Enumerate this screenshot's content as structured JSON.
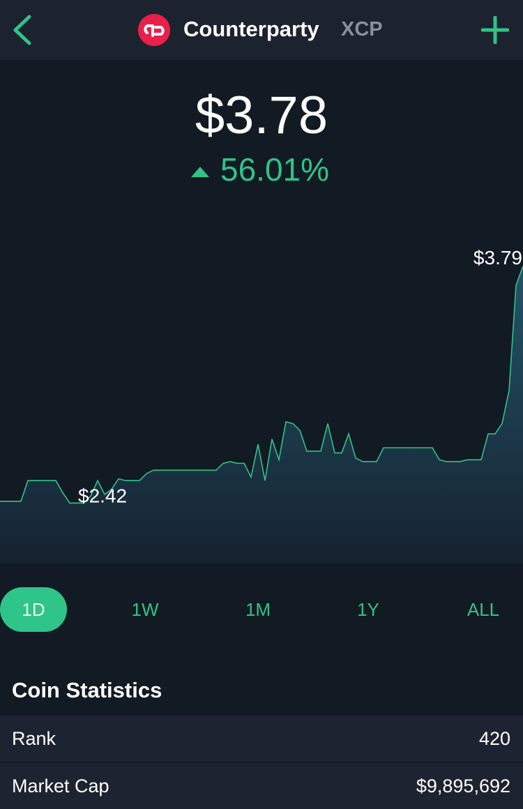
{
  "header": {
    "name": "Counterparty",
    "symbol": "XCP"
  },
  "price": "$3.78",
  "change": "56.01%",
  "chart_data": {
    "type": "line",
    "values": [
      2.43,
      2.43,
      2.43,
      2.43,
      2.55,
      2.55,
      2.55,
      2.55,
      2.55,
      2.48,
      2.42,
      2.42,
      2.42,
      2.46,
      2.55,
      2.47,
      2.5,
      2.56,
      2.55,
      2.55,
      2.55,
      2.59,
      2.61,
      2.61,
      2.61,
      2.61,
      2.61,
      2.61,
      2.61,
      2.61,
      2.61,
      2.61,
      2.65,
      2.66,
      2.65,
      2.65,
      2.57,
      2.76,
      2.55,
      2.79,
      2.67,
      2.89,
      2.88,
      2.84,
      2.72,
      2.72,
      2.72,
      2.88,
      2.71,
      2.71,
      2.82,
      2.68,
      2.66,
      2.66,
      2.66,
      2.74,
      2.74,
      2.74,
      2.74,
      2.74,
      2.74,
      2.74,
      2.74,
      2.67,
      2.66,
      2.66,
      2.66,
      2.67,
      2.67,
      2.67,
      2.82,
      2.82,
      2.88,
      3.07,
      3.68,
      3.79
    ],
    "color": "#2fc488",
    "ylim": [
      2.07,
      4.12
    ],
    "min_label": "$2.42",
    "max_label": "$3.79"
  },
  "ranges": [
    "1D",
    "1W",
    "1M",
    "1Y",
    "ALL"
  ],
  "selected_range": 0,
  "statistics": {
    "title": "Coin Statistics",
    "rows": [
      [
        "Rank",
        "420"
      ],
      [
        "Market Cap",
        "$9,895,692"
      ]
    ]
  }
}
